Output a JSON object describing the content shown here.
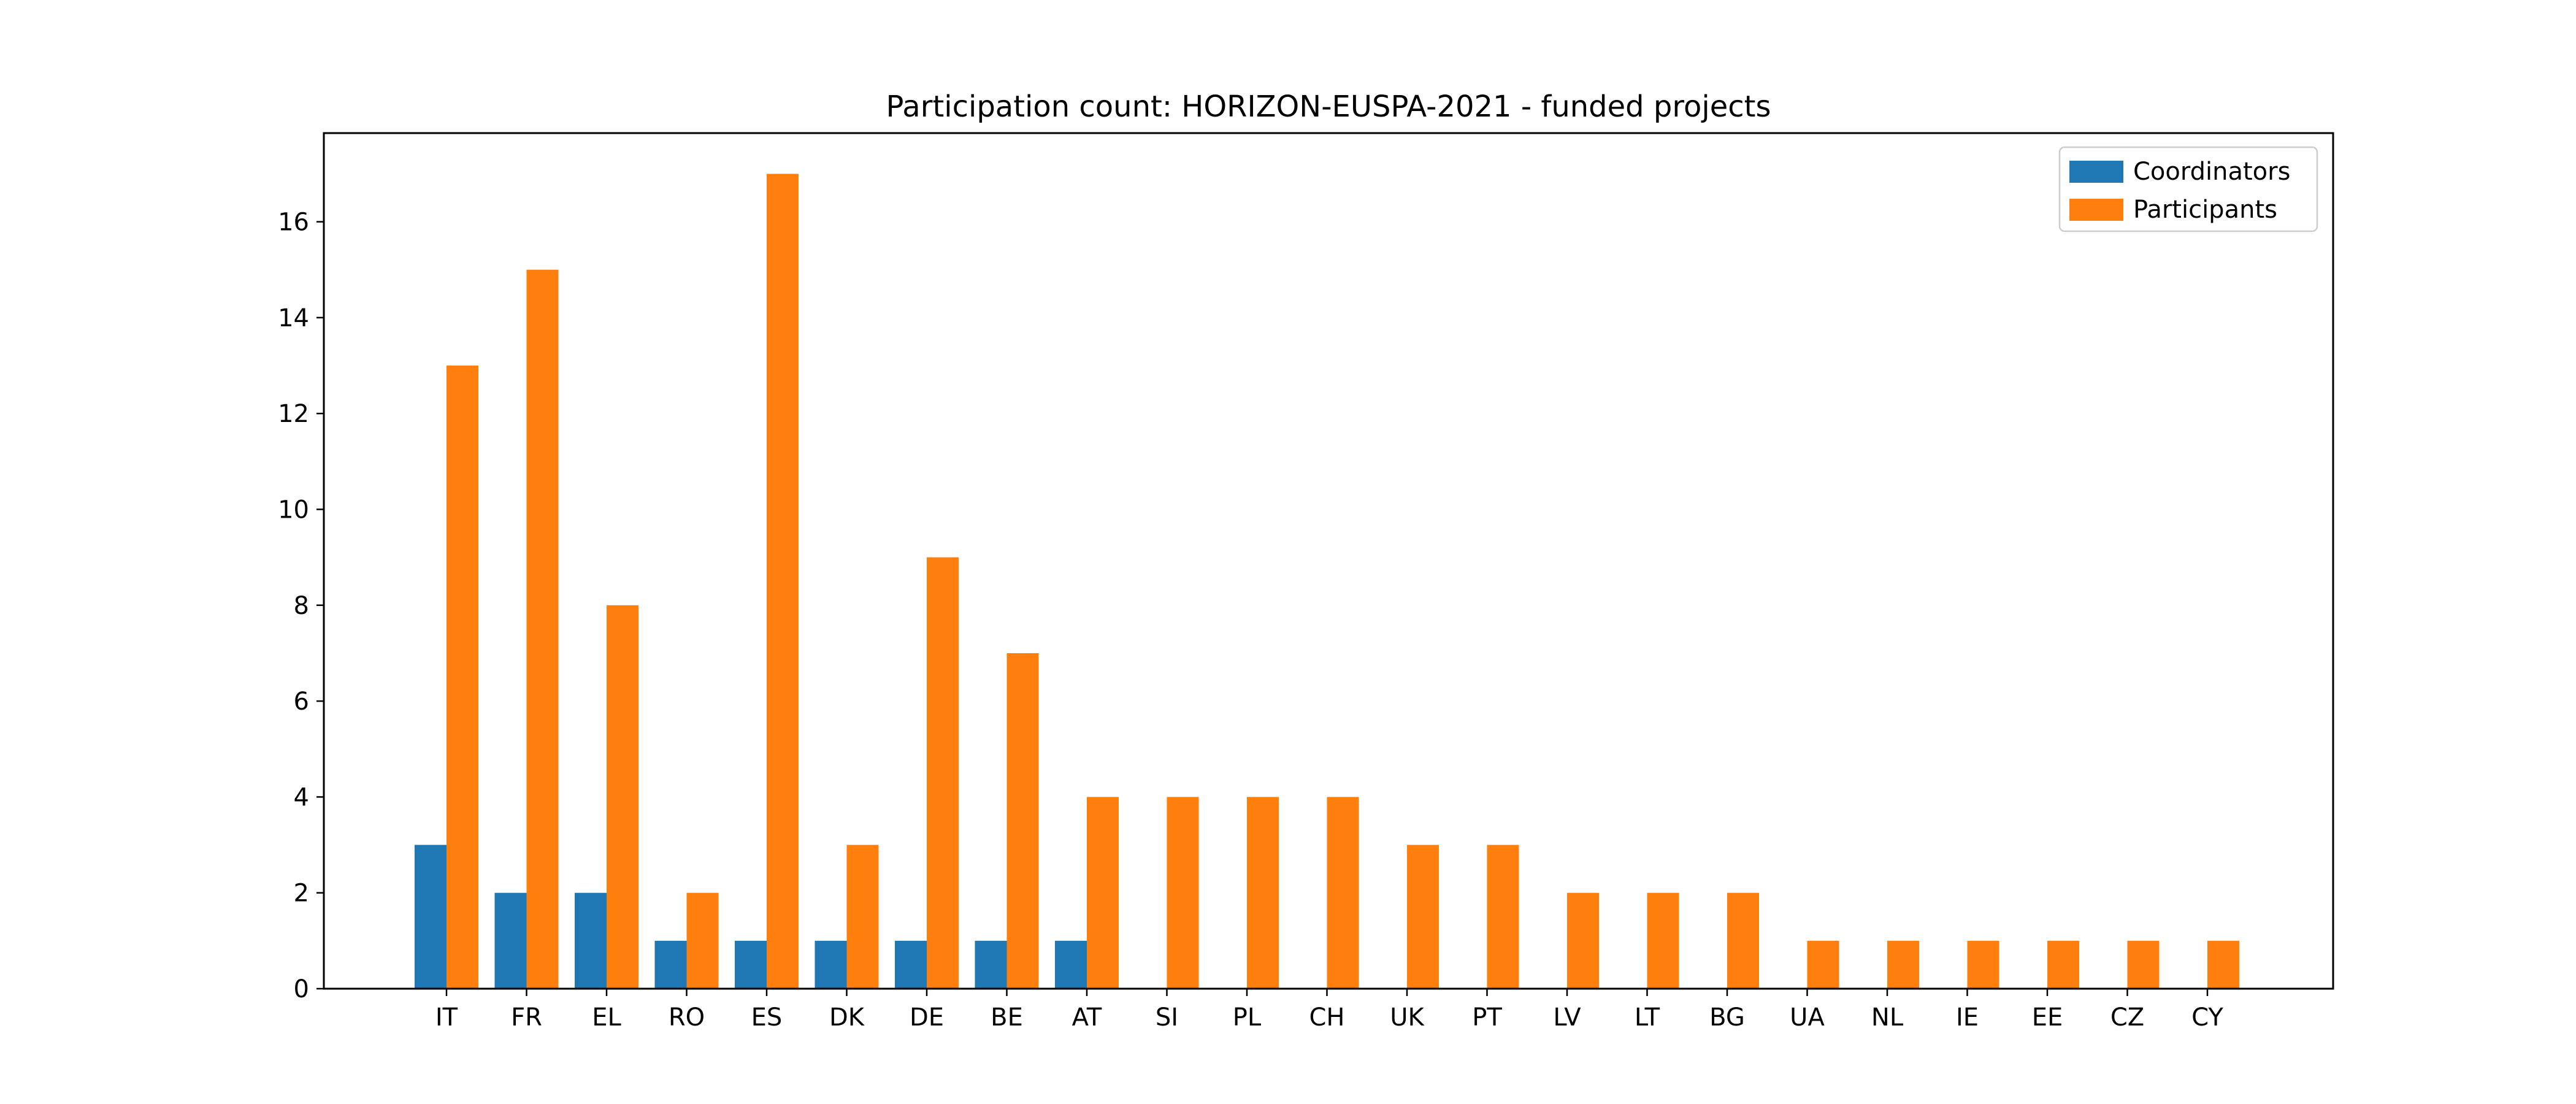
{
  "chart_data": {
    "type": "bar",
    "title": "Participation count: HORIZON-EUSPA-2021 - funded projects",
    "xlabel": "",
    "ylabel": "",
    "categories": [
      "IT",
      "FR",
      "EL",
      "RO",
      "ES",
      "DK",
      "DE",
      "BE",
      "AT",
      "SI",
      "PL",
      "CH",
      "UK",
      "PT",
      "LV",
      "LT",
      "BG",
      "UA",
      "NL",
      "IE",
      "EE",
      "CZ",
      "CY"
    ],
    "series": [
      {
        "name": "Coordinators",
        "color": "#1f77b4",
        "values": [
          3,
          2,
          2,
          1,
          1,
          1,
          1,
          1,
          1,
          0,
          0,
          0,
          0,
          0,
          0,
          0,
          0,
          0,
          0,
          0,
          0,
          0,
          0
        ]
      },
      {
        "name": "Participants",
        "color": "#ff7f0e",
        "values": [
          13,
          15,
          8,
          2,
          17,
          3,
          9,
          7,
          4,
          4,
          4,
          4,
          3,
          3,
          2,
          2,
          2,
          1,
          1,
          1,
          1,
          1,
          1
        ]
      }
    ],
    "yticks": [
      0,
      2,
      4,
      6,
      8,
      10,
      12,
      14,
      16
    ],
    "ylim": [
      0,
      17.85
    ],
    "grid": false,
    "legend_position": "top-right"
  }
}
